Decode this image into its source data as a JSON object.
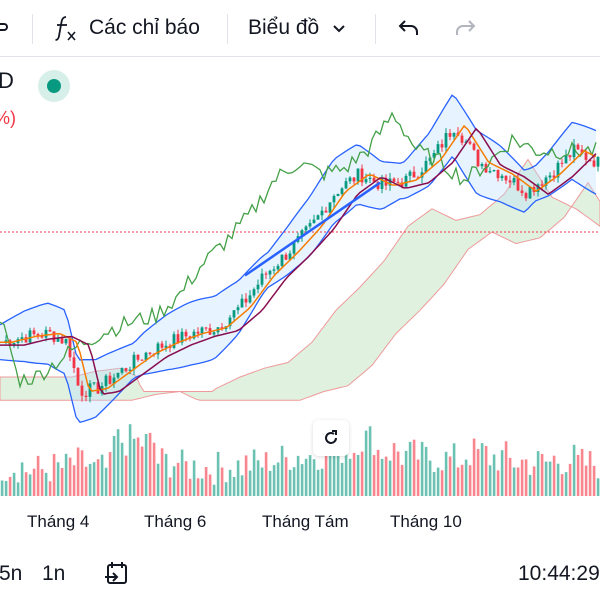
{
  "toolbar": {
    "indicators_label": "Các chỉ báo",
    "chart_type_label": "Biểu đồ"
  },
  "legend": {
    "symbol_fragment": "D",
    "change_fragment": "%)"
  },
  "x_axis": {
    "labels": [
      "Tháng 4",
      "Tháng 6",
      "Tháng Tám",
      "Tháng 10"
    ]
  },
  "bottom_bar": {
    "range_5n": "5n",
    "range_1n": "1n",
    "time": "10:44:29"
  },
  "colors": {
    "up": "#089981",
    "down": "#f23645",
    "bollinger": "#2962ff",
    "chikou": "#43a047",
    "ma_short": "#f57c00",
    "ma_long": "#880e4f",
    "cloud_green": "#a5d6a7",
    "cloud_red": "#ef9a9a"
  },
  "icons": {
    "indicators": "fx-icon",
    "chart_type": "chevron-down-icon",
    "undo": "undo-icon",
    "redo": "redo-icon",
    "reset": "reset-icon",
    "date_range": "calendar-arrow-icon"
  },
  "chart_data": {
    "type": "candlestick",
    "x_ticks": [
      "Tháng 4",
      "Tháng 6",
      "Tháng Tám",
      "Tháng 10"
    ],
    "indicators": [
      "Bollinger Bands",
      "Ichimoku Cloud",
      "Moving Averages",
      "Volume"
    ],
    "close_path": [
      [
        0,
        0.22
      ],
      [
        0.04,
        0.24
      ],
      [
        0.08,
        0.25
      ],
      [
        0.11,
        0.22
      ],
      [
        0.13,
        0.05
      ],
      [
        0.16,
        0.06
      ],
      [
        0.2,
        0.12
      ],
      [
        0.24,
        0.18
      ],
      [
        0.28,
        0.22
      ],
      [
        0.32,
        0.25
      ],
      [
        0.36,
        0.27
      ],
      [
        0.4,
        0.34
      ],
      [
        0.44,
        0.45
      ],
      [
        0.48,
        0.53
      ],
      [
        0.52,
        0.62
      ],
      [
        0.56,
        0.74
      ],
      [
        0.6,
        0.8
      ],
      [
        0.64,
        0.76
      ],
      [
        0.68,
        0.78
      ],
      [
        0.72,
        0.85
      ],
      [
        0.76,
        0.97
      ],
      [
        0.8,
        0.84
      ],
      [
        0.84,
        0.8
      ],
      [
        0.88,
        0.74
      ],
      [
        0.92,
        0.8
      ],
      [
        0.96,
        0.88
      ],
      [
        1.0,
        0.84
      ]
    ],
    "volume_pattern": [
      0.3,
      0.2,
      0.25,
      0.35,
      0.22,
      0.9,
      0.85,
      0.4,
      0.28,
      0.25,
      0.3,
      0.35,
      0.45,
      0.55,
      0.6,
      0.7,
      0.95,
      0.65,
      0.55,
      0.5,
      0.45,
      0.6,
      0.5,
      0.4,
      0.38,
      0.45,
      0.35
    ]
  }
}
